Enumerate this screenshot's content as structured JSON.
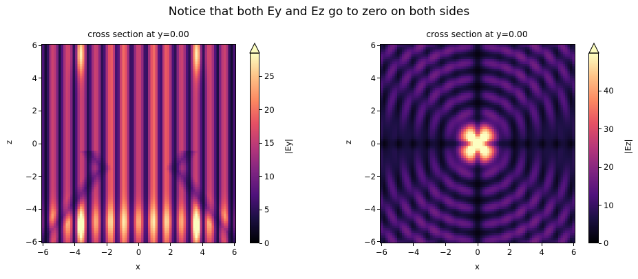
{
  "figure": {
    "suptitle": "Notice that both Ey and Ez go to zero on both sides"
  },
  "chart_data": [
    {
      "type": "heatmap",
      "title": "cross section at y=0.00",
      "xlabel": "x",
      "ylabel": "z",
      "xlim": [
        -6.1,
        6.1
      ],
      "ylim": [
        -6.1,
        6.1
      ],
      "xticks": [
        "−6",
        "−4",
        "−2",
        "0",
        "2",
        "4",
        "6"
      ],
      "yticks": [
        "−6",
        "−4",
        "−2",
        "0",
        "2",
        "4",
        "6"
      ],
      "xtick_values": [
        -6,
        -4,
        -2,
        0,
        2,
        4,
        6
      ],
      "ytick_values": [
        -6,
        -4,
        -2,
        0,
        2,
        4,
        6
      ],
      "colormap": "magma",
      "colorbar": {
        "label": "|Ey|",
        "range": [
          0,
          28.5
        ],
        "extend": "max",
        "ticks": [
          "0",
          "5",
          "10",
          "15",
          "20",
          "25"
        ],
        "tick_values": [
          0,
          5,
          10,
          15,
          20,
          25
        ]
      },
      "field": "Ey"
    },
    {
      "type": "heatmap",
      "title": "cross section at y=0.00",
      "xlabel": "x",
      "ylabel": "z",
      "xlim": [
        -6.1,
        6.1
      ],
      "ylim": [
        -6.1,
        6.1
      ],
      "xticks": [
        "−6",
        "−4",
        "−2",
        "0",
        "2",
        "4",
        "6"
      ],
      "yticks": [
        "−6",
        "−4",
        "−2",
        "0",
        "2",
        "4",
        "6"
      ],
      "xtick_values": [
        -6,
        -4,
        -2,
        0,
        2,
        4,
        6
      ],
      "ytick_values": [
        -6,
        -4,
        -2,
        0,
        2,
        4,
        6
      ],
      "colormap": "magma",
      "colorbar": {
        "label": "|Ez|",
        "range": [
          0,
          50
        ],
        "extend": "max",
        "ticks": [
          "0",
          "10",
          "20",
          "30",
          "40"
        ],
        "tick_values": [
          0,
          10,
          20,
          30,
          40
        ]
      },
      "field": "Ez"
    }
  ]
}
